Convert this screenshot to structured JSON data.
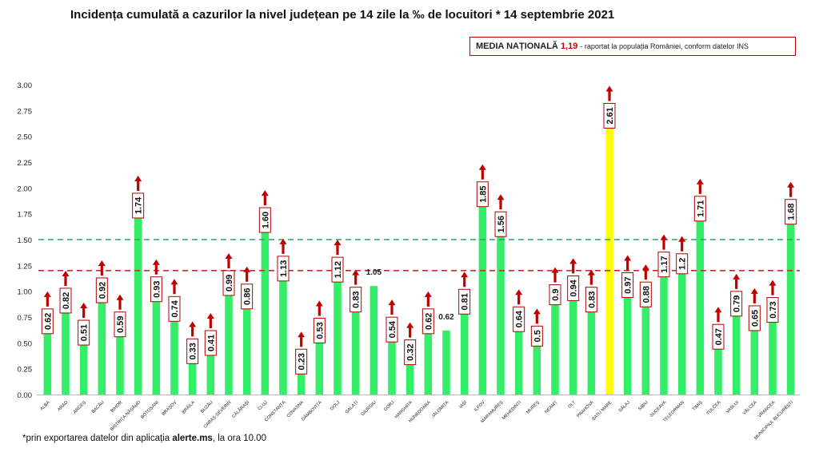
{
  "header": {
    "title": "Incidența cumulată a cazurilor la nivel județean pe 14 zile la ‰ de locuitori *",
    "date": "14 septembrie 2021"
  },
  "legend": {
    "label": "MEDIA NAȚIONALĂ",
    "value": "1,19",
    "note": "- raportat la populația României, conform datelor INS"
  },
  "footnote": {
    "prefix": "*prin exportarea datelor din aplicația",
    "source": "alerte.ms",
    "suffix": ", la ora 10.00"
  },
  "colors": {
    "bar": "#33ee66",
    "highlight": "#ffff00",
    "arrow": "#c00000",
    "green_line": "#2e9e6a",
    "red_line": "#c03030",
    "label_border": "#b00000"
  },
  "chart_data": {
    "type": "bar",
    "ylim": [
      0,
      3.0
    ],
    "yticks": [
      "0.00",
      "0.25",
      "0.50",
      "0.75",
      "1.00",
      "1.25",
      "1.50",
      "1.75",
      "2.00",
      "2.25",
      "2.50",
      "2.75",
      "3.00"
    ],
    "reference_lines": [
      {
        "value": 1.5,
        "color": "#2e9e6a",
        "style": "dashed"
      },
      {
        "value": 1.2,
        "color": "#c03030",
        "style": "dashed"
      }
    ],
    "categories": [
      "ALBA",
      "ARAD",
      "ARGEȘ",
      "BACĂU",
      "BIHOR",
      "BISTRIȚA-NĂSĂUD",
      "BOTOȘANI",
      "BRAȘOV",
      "BRĂILA",
      "BUZĂU",
      "CARAȘ-SEVERIN",
      "CĂLĂRAȘI",
      "CLUJ",
      "CONSTANȚA",
      "COVASNA",
      "DÂMBOVIȚA",
      "DOLJ",
      "GALAȚI",
      "GIURGIU",
      "GORJ",
      "HARGHITA",
      "HUNEDOARA",
      "IALOMIȚA",
      "IAȘI",
      "ILFOV",
      "MARAMUREȘ",
      "MEHEDINȚI",
      "MUREȘ",
      "NEAMȚ",
      "OLT",
      "PRAHOVA",
      "SATU MARE",
      "SĂLAJ",
      "SIBIU",
      "SUCEAVA",
      "TELEORMAN",
      "TIMIȘ",
      "TULCEA",
      "VASLUI",
      "VÂLCEA",
      "VRANCEA",
      "MUNICIPIUL BUCUREȘTI"
    ],
    "values": [
      0.62,
      0.82,
      0.51,
      0.92,
      0.59,
      1.74,
      0.93,
      0.74,
      0.33,
      0.41,
      0.99,
      0.86,
      1.6,
      1.13,
      0.23,
      0.53,
      1.12,
      0.83,
      1.05,
      0.54,
      0.32,
      0.62,
      0.62,
      0.81,
      1.85,
      1.56,
      0.64,
      0.5,
      0.9,
      0.94,
      0.83,
      2.61,
      0.97,
      0.88,
      1.17,
      1.2,
      1.71,
      0.47,
      0.79,
      0.65,
      0.73,
      1.68
    ],
    "labels": [
      "0.62",
      "0.82",
      "0.51",
      "0.92",
      "0.59",
      "1.74",
      "0.93",
      "0.74",
      "0.33",
      "0.41",
      "0.99",
      "0.86",
      "1.60",
      "1.13",
      "0.23",
      "0.53",
      "1.12",
      "0.83",
      "1.05",
      "0.54",
      "0.32",
      "0.62",
      "0.62",
      "0.81",
      "1.85",
      "1.56",
      "0.64",
      "0.5",
      "0.9",
      "0.94",
      "0.83",
      "2.61",
      "0.97",
      "0.88",
      "1.17",
      "1.2",
      "1.71",
      "0.47",
      "0.79",
      "0.65",
      "0.73",
      "1.68"
    ],
    "boxed": [
      true,
      true,
      true,
      true,
      true,
      true,
      true,
      true,
      true,
      true,
      true,
      true,
      true,
      true,
      true,
      true,
      true,
      true,
      false,
      true,
      true,
      true,
      false,
      true,
      true,
      true,
      true,
      true,
      true,
      true,
      true,
      true,
      true,
      true,
      true,
      true,
      true,
      true,
      true,
      true,
      true,
      true
    ],
    "arrow_up": [
      true,
      true,
      true,
      true,
      true,
      true,
      true,
      true,
      true,
      true,
      true,
      true,
      true,
      true,
      true,
      true,
      true,
      true,
      false,
      true,
      true,
      true,
      false,
      true,
      true,
      true,
      true,
      true,
      true,
      true,
      true,
      true,
      true,
      true,
      true,
      true,
      true,
      true,
      true,
      true,
      true,
      true
    ],
    "highlight_index": 31
  }
}
